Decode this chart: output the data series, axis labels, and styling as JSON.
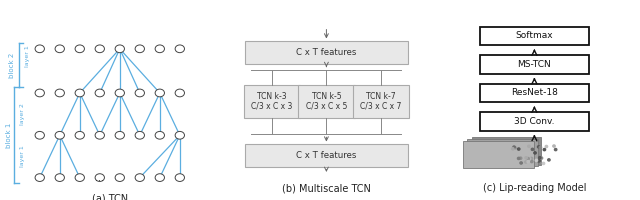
{
  "fig_width": 6.4,
  "fig_height": 2.0,
  "dpi": 100,
  "bg_color": "#ffffff",
  "tcn_edge_color": "#5baee0",
  "tcn_label_color": "#5baee0",
  "caption_a": "(a) TCN",
  "caption_b": "(b) Multiscale TCN",
  "caption_c": "(c) Lip-reading Model",
  "multiscale_top_label": "C x T features",
  "multiscale_bot_label": "C x T features",
  "multiscale_k3_l1": "TCN k-3",
  "multiscale_k3_l2": "C/3 x C x 3",
  "multiscale_k5_l1": "TCN k-5",
  "multiscale_k5_l2": "C/3 x C x 5",
  "multiscale_k7_l1": "TCN k-7",
  "multiscale_k7_l2": "C/3 x C x 7",
  "lip_boxes": [
    "Softmax",
    "MS-TCN",
    "ResNet-18",
    "3D Conv."
  ]
}
